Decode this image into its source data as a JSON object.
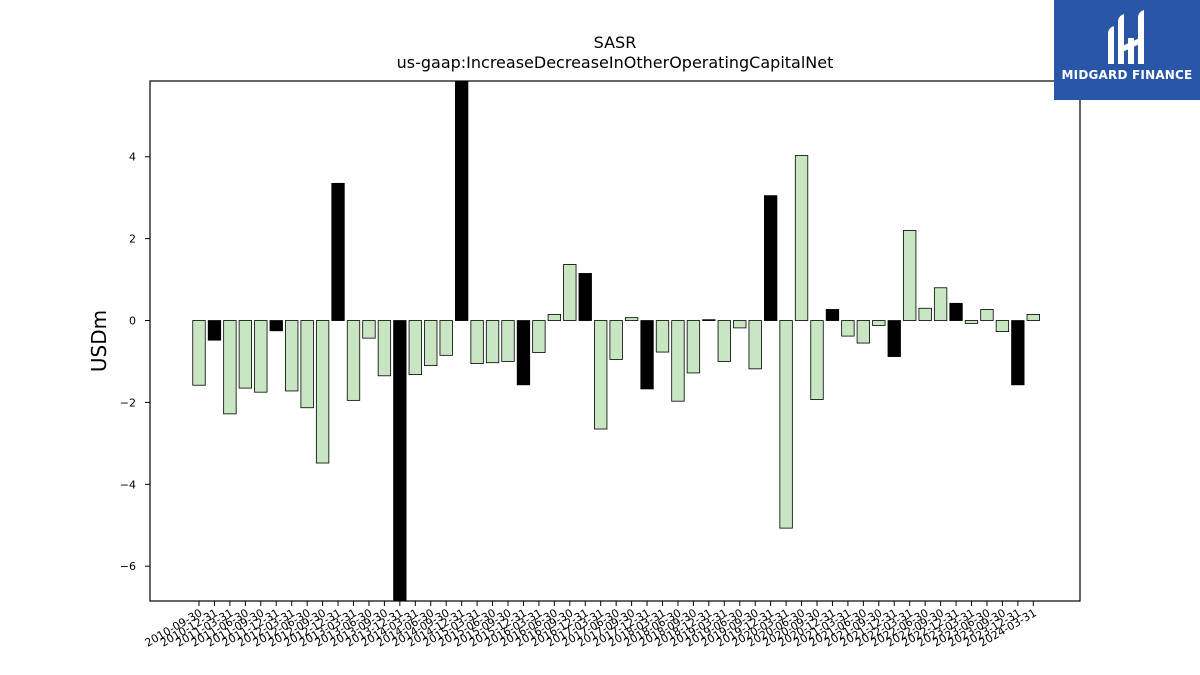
{
  "logo": {
    "text": "MIDGARD FINANCE",
    "bg_color": "#2a56a8"
  },
  "chart_data": {
    "type": "bar",
    "title": "SASR",
    "subtitle": "us-gaap:IncreaseDecreaseInOtherOperatingCapitalNet",
    "ylabel": "USDm",
    "xlabel": "",
    "ylim": [
      -6.85,
      5.85
    ],
    "yticks": [
      -6,
      -4,
      -2,
      0,
      2,
      4
    ],
    "grid": false,
    "colors": {
      "positive_q4": "#000000",
      "default": "#c9e6c3",
      "edge": "#000000"
    },
    "categories": [
      "2010-09-30",
      "2010-12-31",
      "2011-03-31",
      "2011-06-30",
      "2011-09-30",
      "2011-12-31",
      "2012-03-31",
      "2012-06-30",
      "2012-09-30",
      "2012-12-31",
      "2013-03-31",
      "2013-06-30",
      "2013-09-30",
      "2013-12-31",
      "2014-03-31",
      "2014-06-30",
      "2014-09-30",
      "2014-12-31",
      "2015-03-31",
      "2015-06-30",
      "2015-09-30",
      "2015-12-31",
      "2016-03-31",
      "2016-06-30",
      "2016-09-30",
      "2016-12-31",
      "2017-03-31",
      "2017-06-30",
      "2017-09-30",
      "2017-12-31",
      "2018-03-31",
      "2018-06-30",
      "2018-09-30",
      "2018-12-31",
      "2019-03-31",
      "2019-06-30",
      "2019-09-30",
      "2019-12-31",
      "2020-03-31",
      "2020-06-30",
      "2020-09-30",
      "2020-12-31",
      "2021-03-31",
      "2021-06-30",
      "2021-09-30",
      "2021-12-31",
      "2022-03-31",
      "2022-06-30",
      "2022-09-30",
      "2022-12-31",
      "2023-03-31",
      "2023-06-30",
      "2023-09-30",
      "2023-12-31",
      "2024-03-31"
    ],
    "values": [
      -1.58,
      -0.48,
      -2.28,
      -1.65,
      -1.75,
      -0.25,
      -1.72,
      -2.13,
      -3.48,
      3.35,
      -1.95,
      -0.43,
      -1.35,
      -6.85,
      -1.32,
      -1.1,
      -0.85,
      5.85,
      -1.05,
      -1.03,
      -1.0,
      -1.57,
      -0.78,
      0.15,
      1.37,
      1.15,
      -2.65,
      -0.95,
      0.07,
      -1.67,
      -0.77,
      -1.97,
      -1.28,
      0.02,
      -1.0,
      -0.18,
      -1.18,
      3.05,
      -5.07,
      4.03,
      -1.93,
      0.27,
      -0.38,
      -0.55,
      -0.12,
      -0.88,
      2.2,
      0.3,
      0.8,
      0.42,
      -0.07,
      0.27,
      -0.27,
      -1.57,
      0.15
    ],
    "highlight": [
      false,
      true,
      false,
      false,
      false,
      true,
      false,
      false,
      false,
      true,
      false,
      false,
      false,
      true,
      false,
      false,
      false,
      true,
      false,
      false,
      false,
      true,
      false,
      false,
      false,
      true,
      false,
      false,
      false,
      true,
      false,
      false,
      false,
      true,
      false,
      false,
      false,
      true,
      false,
      false,
      false,
      true,
      false,
      false,
      false,
      true,
      false,
      false,
      false,
      true,
      false,
      false,
      false,
      true,
      false
    ]
  }
}
